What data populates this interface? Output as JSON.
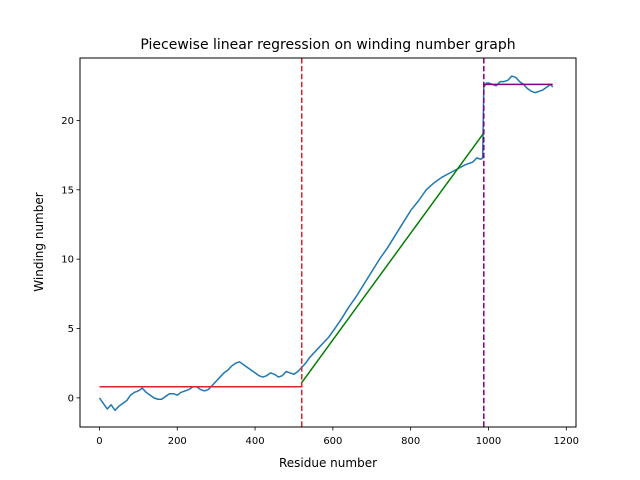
{
  "chart_data": {
    "type": "line",
    "title": "Piecewise linear regression on winding number graph",
    "xlabel": "Residue number",
    "ylabel": "Winding number",
    "xlim": [
      -50,
      1225
    ],
    "ylim": [
      -2.1,
      24.5
    ],
    "x_ticks": [
      0,
      200,
      400,
      600,
      800,
      1000,
      1200
    ],
    "y_ticks": [
      0,
      5,
      10,
      15,
      20
    ],
    "grid": false,
    "legend": "none",
    "colors": {
      "data": "#1f77b4",
      "segment_1": "#d62728",
      "segment_2": "#008000",
      "segment_3": "#800080",
      "breakpoint_1": "#d62728",
      "breakpoint_2": "#800080"
    },
    "breakpoints": [
      520,
      988
    ],
    "segments": [
      {
        "x": [
          0,
          520
        ],
        "y": [
          0.8,
          0.8
        ],
        "color": "#d62728"
      },
      {
        "x": [
          520,
          988
        ],
        "y": [
          1.1,
          19.1
        ],
        "color": "#008000"
      },
      {
        "x": [
          988,
          1165
        ],
        "y": [
          22.6,
          22.6
        ],
        "color": "#800080"
      }
    ],
    "series": [
      {
        "x": [
          0,
          10,
          20,
          30,
          40,
          50,
          60,
          70,
          80,
          90,
          100,
          110,
          120,
          130,
          140,
          150,
          160,
          170,
          180,
          190,
          200,
          210,
          220,
          230,
          240,
          250,
          260,
          270,
          280,
          290,
          300,
          310,
          320,
          330,
          340,
          350,
          360,
          370,
          380,
          390,
          400,
          410,
          420,
          430,
          440,
          450,
          460,
          470,
          480,
          490,
          500,
          510,
          520,
          530,
          540,
          550,
          560,
          570,
          580,
          590,
          600,
          620,
          640,
          660,
          680,
          700,
          720,
          740,
          760,
          780,
          800,
          820,
          840,
          860,
          880,
          900,
          920,
          940,
          960,
          970,
          980,
          985,
          988,
          995,
          1000,
          1010,
          1020,
          1030,
          1040,
          1050,
          1060,
          1070,
          1080,
          1090,
          1100,
          1110,
          1120,
          1130,
          1140,
          1150,
          1160,
          1165
        ],
        "y": [
          0.0,
          -0.4,
          -0.8,
          -0.5,
          -0.9,
          -0.6,
          -0.4,
          -0.2,
          0.2,
          0.4,
          0.5,
          0.7,
          0.4,
          0.2,
          0.0,
          -0.1,
          -0.1,
          0.1,
          0.3,
          0.3,
          0.2,
          0.4,
          0.5,
          0.6,
          0.8,
          0.8,
          0.6,
          0.5,
          0.6,
          0.9,
          1.2,
          1.5,
          1.8,
          2.0,
          2.3,
          2.5,
          2.6,
          2.4,
          2.2,
          2.0,
          1.8,
          1.6,
          1.5,
          1.6,
          1.8,
          1.7,
          1.5,
          1.6,
          1.9,
          1.8,
          1.7,
          1.9,
          2.2,
          2.5,
          2.9,
          3.2,
          3.5,
          3.8,
          4.1,
          4.4,
          4.8,
          5.6,
          6.5,
          7.3,
          8.2,
          9.1,
          10.0,
          10.8,
          11.7,
          12.6,
          13.5,
          14.2,
          15.0,
          15.5,
          15.9,
          16.2,
          16.5,
          16.8,
          17.0,
          17.3,
          17.2,
          17.3,
          22.4,
          22.7,
          22.7,
          22.6,
          22.5,
          22.8,
          22.8,
          22.9,
          23.2,
          23.1,
          22.8,
          22.6,
          22.3,
          22.1,
          22.0,
          22.1,
          22.2,
          22.4,
          22.6,
          22.4
        ],
        "color": "#1f77b4"
      }
    ]
  }
}
